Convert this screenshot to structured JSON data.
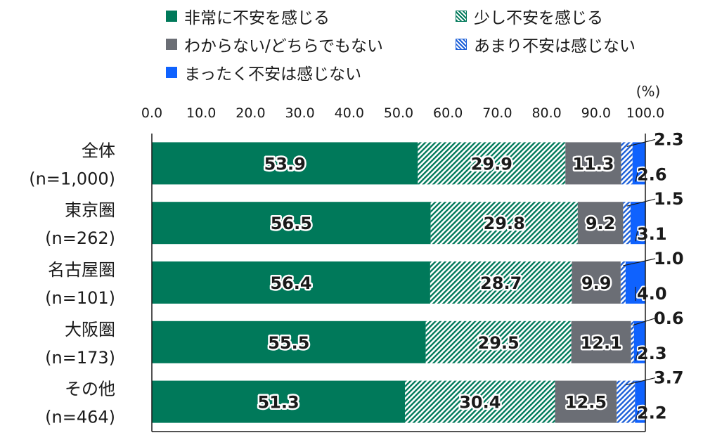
{
  "chart_data": {
    "type": "bar",
    "orientation": "horizontal",
    "stacked": true,
    "unit_label": "(%)",
    "xlim": [
      0,
      100
    ],
    "x_ticks": [
      "0.0",
      "10.0",
      "20.0",
      "30.0",
      "40.0",
      "50.0",
      "60.0",
      "70.0",
      "80.0",
      "90.0",
      "100.0"
    ],
    "categories": [
      {
        "name": "全体",
        "n": "(n=1,000)"
      },
      {
        "name": "東京圏",
        "n": "(n=262)"
      },
      {
        "name": "名古屋圏",
        "n": "(n=101)"
      },
      {
        "name": "大阪圏",
        "n": "(n=173)"
      },
      {
        "name": "その他",
        "n": "(n=464)"
      }
    ],
    "series": [
      {
        "name": "非常に不安を感じる",
        "color": "#00795a",
        "pattern": "solid",
        "values": [
          53.9,
          56.5,
          56.4,
          55.5,
          51.3
        ]
      },
      {
        "name": "少し不安を感じる",
        "color": "#00795a",
        "pattern": "hatch-green",
        "values": [
          29.9,
          29.8,
          28.7,
          29.5,
          30.4
        ]
      },
      {
        "name": "わからない/どちらでもない",
        "color": "#6b6e75",
        "pattern": "solid",
        "values": [
          11.3,
          9.2,
          9.9,
          12.1,
          12.5
        ]
      },
      {
        "name": "あまり不安は感じない",
        "color": "#1c5fd8",
        "pattern": "hatch-blue",
        "values": [
          2.3,
          1.5,
          1.0,
          0.6,
          3.7
        ]
      },
      {
        "name": "まったく不安は感じない",
        "color": "#0f62fe",
        "pattern": "solid",
        "values": [
          2.6,
          3.1,
          4.0,
          2.3,
          2.2
        ]
      }
    ],
    "legend_position": "top",
    "grid": false
  }
}
